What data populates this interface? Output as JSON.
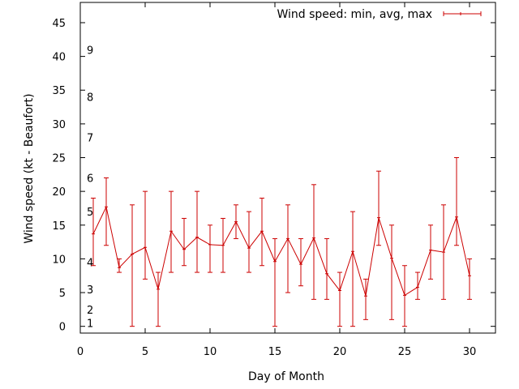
{
  "chart_data": {
    "type": "line",
    "title": "",
    "xlabel": "Day of Month",
    "ylabel": "Wind speed (kt - Beaufort)",
    "xlim": [
      0,
      32
    ],
    "ylim": [
      -1,
      48
    ],
    "xticks": [
      0,
      5,
      10,
      15,
      20,
      25,
      30
    ],
    "yticks": [
      0,
      5,
      10,
      15,
      20,
      25,
      30,
      35,
      40,
      45
    ],
    "grid": false,
    "legend_position": "top-right",
    "beaufort_labels": [
      {
        "label": "1",
        "y": 0.5
      },
      {
        "label": "2",
        "y": 2.5
      },
      {
        "label": "3",
        "y": 5.5
      },
      {
        "label": "4",
        "y": 9.5
      },
      {
        "label": "5",
        "y": 17
      },
      {
        "label": "6",
        "y": 22
      },
      {
        "label": "7",
        "y": 28
      },
      {
        "label": "8",
        "y": 34
      },
      {
        "label": "9",
        "y": 41
      }
    ],
    "series": [
      {
        "name": "Wind speed: min, avg, max",
        "color": "#cc0000",
        "points": [
          {
            "x": 1,
            "avg": 13.7,
            "min": 9,
            "max": 19
          },
          {
            "x": 2,
            "avg": 17.7,
            "min": 12,
            "max": 22
          },
          {
            "x": 3,
            "avg": 8.7,
            "min": 8,
            "max": 10
          },
          {
            "x": 4,
            "avg": 10.7,
            "min": 0,
            "max": 18
          },
          {
            "x": 5,
            "avg": 11.7,
            "min": 7,
            "max": 20
          },
          {
            "x": 6,
            "avg": 5.5,
            "min": 0,
            "max": 8
          },
          {
            "x": 7,
            "avg": 14.1,
            "min": 8,
            "max": 20
          },
          {
            "x": 8,
            "avg": 11.4,
            "min": 9,
            "max": 16
          },
          {
            "x": 9,
            "avg": 13.2,
            "min": 8,
            "max": 20
          },
          {
            "x": 10,
            "avg": 12.1,
            "min": 8,
            "max": 15
          },
          {
            "x": 11,
            "avg": 12.0,
            "min": 8,
            "max": 16
          },
          {
            "x": 12,
            "avg": 15.5,
            "min": 13,
            "max": 18
          },
          {
            "x": 13,
            "avg": 11.6,
            "min": 8,
            "max": 17
          },
          {
            "x": 14,
            "avg": 14.1,
            "min": 9,
            "max": 19
          },
          {
            "x": 15,
            "avg": 9.6,
            "min": 0,
            "max": 13
          },
          {
            "x": 16,
            "avg": 13.0,
            "min": 5,
            "max": 18
          },
          {
            "x": 17,
            "avg": 9.2,
            "min": 6,
            "max": 13
          },
          {
            "x": 18,
            "avg": 13.1,
            "min": 4,
            "max": 21
          },
          {
            "x": 19,
            "avg": 7.8,
            "min": 4,
            "max": 13
          },
          {
            "x": 20,
            "avg": 5.3,
            "min": 0,
            "max": 8
          },
          {
            "x": 21,
            "avg": 11.1,
            "min": 0,
            "max": 17
          },
          {
            "x": 22,
            "avg": 4.5,
            "min": 1,
            "max": 7
          },
          {
            "x": 23,
            "avg": 16.1,
            "min": 12,
            "max": 23
          },
          {
            "x": 24,
            "avg": 10.1,
            "min": 1,
            "max": 15
          },
          {
            "x": 25,
            "avg": 4.6,
            "min": 0,
            "max": 9
          },
          {
            "x": 26,
            "avg": 5.8,
            "min": 4,
            "max": 8
          },
          {
            "x": 27,
            "avg": 11.3,
            "min": 7,
            "max": 15
          },
          {
            "x": 28,
            "avg": 11.0,
            "min": 4,
            "max": 18
          },
          {
            "x": 29,
            "avg": 16.2,
            "min": 12,
            "max": 25
          },
          {
            "x": 30,
            "avg": 7.5,
            "min": 4,
            "max": 10
          }
        ]
      }
    ]
  }
}
